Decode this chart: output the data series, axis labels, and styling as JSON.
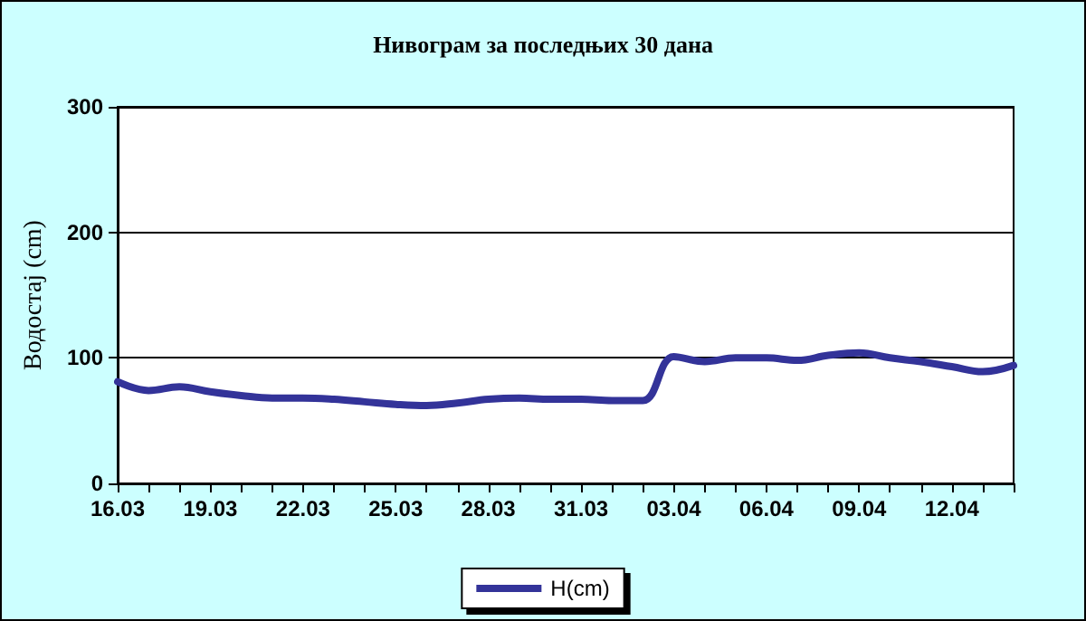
{
  "chart_data": {
    "type": "line",
    "title": "Нивограм за последњих 30 дана",
    "ylabel": "Водостај (cm)",
    "categories": [
      "16.03",
      null,
      null,
      "19.03",
      null,
      null,
      "22.03",
      null,
      null,
      "25.03",
      null,
      null,
      "28.03",
      null,
      null,
      "31.03",
      null,
      null,
      "03.04",
      null,
      null,
      "06.04",
      null,
      null,
      "09.04",
      null,
      null,
      "12.04",
      null,
      null
    ],
    "series": [
      {
        "name": "H(cm)",
        "color": "#333399",
        "values": [
          81,
          74,
          77,
          73,
          70,
          68,
          68,
          67,
          65,
          63,
          62,
          64,
          67,
          68,
          67,
          67,
          66,
          66,
          101,
          97,
          100,
          100,
          98,
          102,
          104,
          100,
          97,
          93,
          89,
          94
        ]
      }
    ],
    "ylim": [
      0,
      300
    ],
    "yticks": [
      0,
      100,
      200,
      300
    ],
    "grid": "y",
    "legend": "bottom",
    "marker": "none",
    "line_style": "solid"
  }
}
